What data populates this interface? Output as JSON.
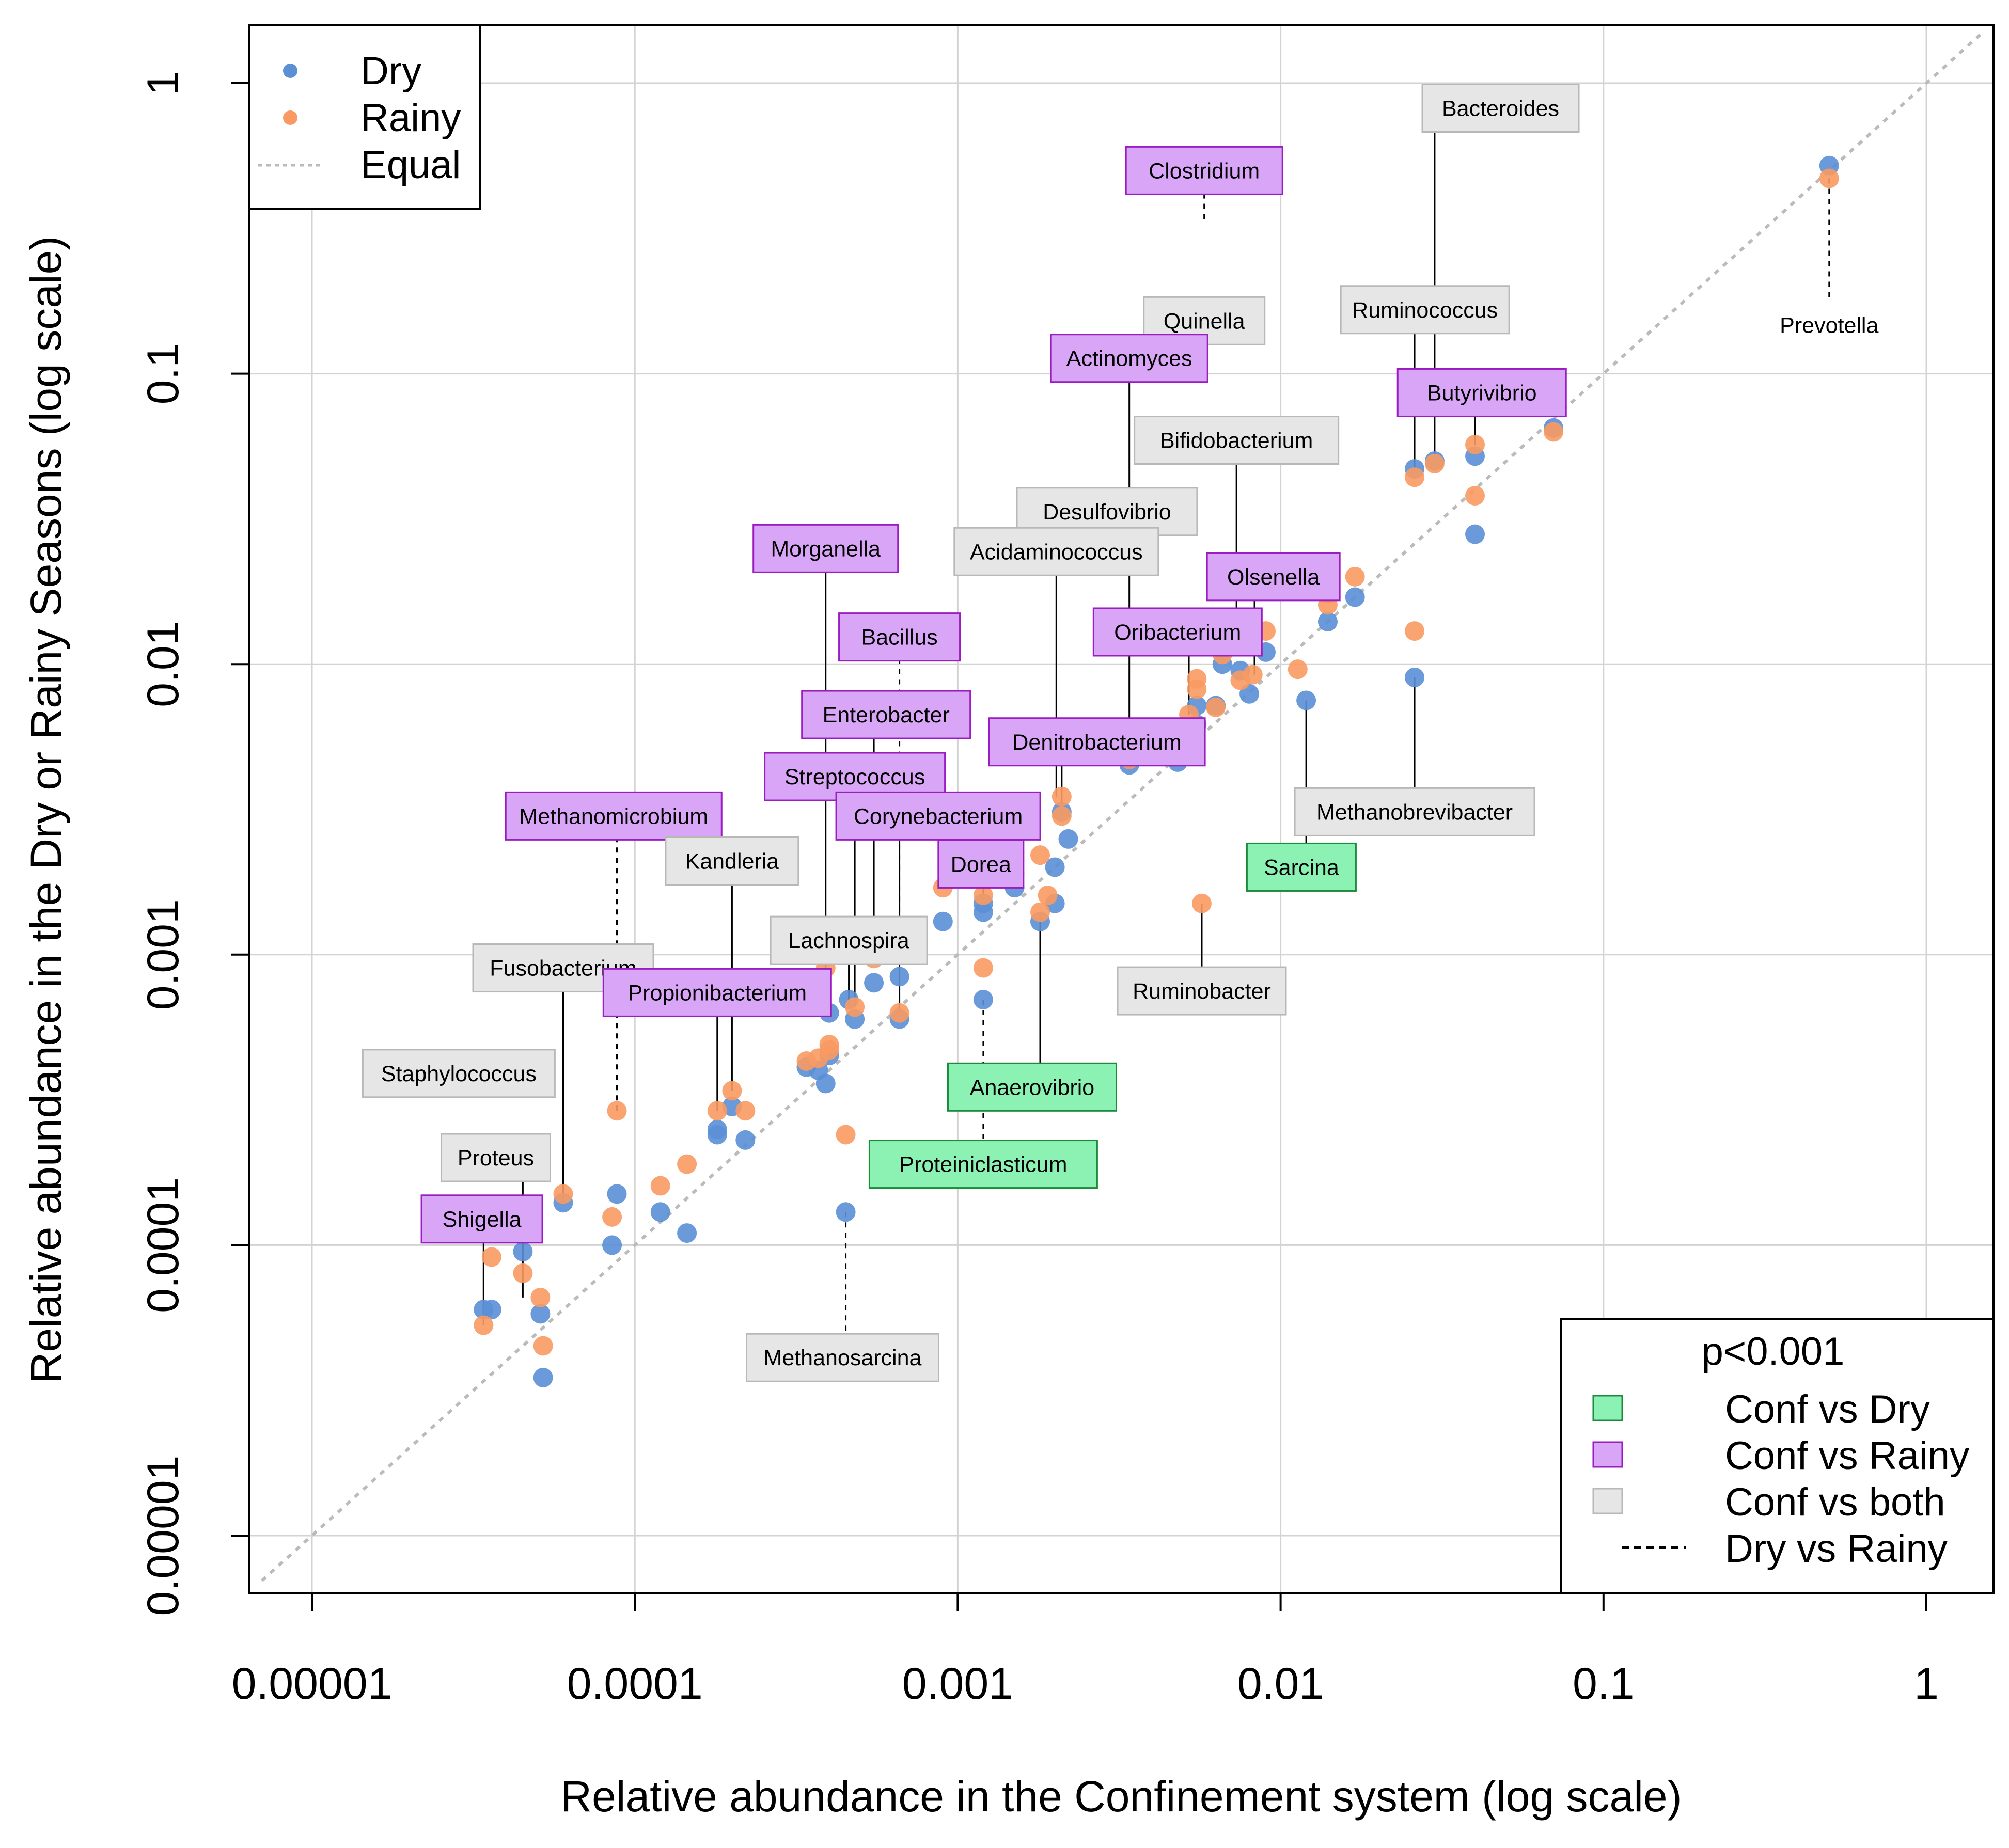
{
  "chart_data": {
    "type": "scatter",
    "xlabel": "Relative abundance in the Confinement system (log scale)",
    "ylabel": "Relative abundance in the Dry or Rainy Seasons (log scale)",
    "scale": "log10",
    "xlim": [
      7e-06,
      1.5
    ],
    "ylim": [
      6e-06,
      1.5
    ],
    "x_ticks": [
      {
        "value": 1e-05,
        "label": "0.00001"
      },
      {
        "value": 0.0001,
        "label": "0.0001"
      },
      {
        "value": 0.001,
        "label": "0.001"
      },
      {
        "value": 0.01,
        "label": "0.01"
      },
      {
        "value": 0.1,
        "label": "0.1"
      },
      {
        "value": 1,
        "label": "1"
      }
    ],
    "y_ticks": [
      {
        "value": 1e-05,
        "label": "0.00001"
      },
      {
        "value": 0.0001,
        "label": "0.0001"
      },
      {
        "value": 0.001,
        "label": "0.001"
      },
      {
        "value": 0.01,
        "label": "0.01"
      },
      {
        "value": 0.1,
        "label": "0.1"
      },
      {
        "value": 1,
        "label": "1"
      }
    ],
    "grid": true,
    "colors": {
      "dry": "#5B8FD6",
      "rainy": "#FA9A62",
      "equal_line": "#BBBBBB",
      "conf_vs_dry": "#8CF2B4",
      "conf_vs_rainy": "#D9A6F7",
      "conf_vs_both": "#E6E6E6",
      "conf_vs_dry_border": "#1E8A3C",
      "conf_vs_rainy_border": "#9B1CC0",
      "conf_vs_both_border": "#B8B8B8"
    },
    "legend_series": {
      "position": "top-left",
      "items": [
        {
          "key": "dry",
          "label": "Dry"
        },
        {
          "key": "rainy",
          "label": "Rainy"
        },
        {
          "key": "equal",
          "label": "Equal"
        }
      ]
    },
    "legend_significance": {
      "position": "bottom-right",
      "title": "p<0.001",
      "items": [
        {
          "key": "conf_vs_dry",
          "label": "Conf vs Dry"
        },
        {
          "key": "conf_vs_rainy",
          "label": "Conf vs Rainy"
        },
        {
          "key": "conf_vs_both",
          "label": "Conf vs both"
        },
        {
          "key": "dry_vs_rainy",
          "label": "Dry vs Rainy"
        }
      ]
    },
    "series": [
      {
        "name": "Dry",
        "points": [
          [
            0.5,
            0.52
          ],
          [
            0.07,
            0.065
          ],
          [
            0.04,
            0.052
          ],
          [
            0.03,
            0.05
          ],
          [
            0.026,
            0.047
          ],
          [
            0.04,
            0.028
          ],
          [
            0.026,
            0.009
          ],
          [
            0.017,
            0.017
          ],
          [
            0.014,
            0.014
          ],
          [
            0.012,
            0.0075
          ],
          [
            0.009,
            0.011
          ],
          [
            0.008,
            0.0079
          ],
          [
            0.0075,
            0.0095
          ],
          [
            0.0066,
            0.01
          ],
          [
            0.0063,
            0.0072
          ],
          [
            0.0055,
            0.0072
          ],
          [
            0.0055,
            0.0062
          ],
          [
            0.0052,
            0.0059
          ],
          [
            0.0048,
            0.0046
          ],
          [
            0.0034,
            0.0045
          ],
          [
            0.0025,
            0.0058
          ],
          [
            0.0022,
            0.0025
          ],
          [
            0.0021,
            0.0031
          ],
          [
            0.002,
            0.002
          ],
          [
            0.002,
            0.0015
          ],
          [
            0.0018,
            0.0013
          ],
          [
            0.0015,
            0.0017
          ],
          [
            0.0012,
            0.0014
          ],
          [
            0.0012,
            0.0015
          ],
          [
            0.0012,
            0.0007
          ],
          [
            0.0009,
            0.0013
          ],
          [
            0.00066,
            0.0006
          ],
          [
            0.00066,
            0.00084
          ],
          [
            0.00055,
            0.0008
          ],
          [
            0.00048,
            0.0006
          ],
          [
            0.00046,
            0.0007
          ],
          [
            0.00045,
            0.00013
          ],
          [
            0.0004,
            0.00045
          ],
          [
            0.0004,
            0.00063
          ],
          [
            0.00039,
            0.00036
          ],
          [
            0.00037,
            0.0004
          ],
          [
            0.00034,
            0.00041
          ],
          [
            0.00022,
            0.00023
          ],
          [
            0.0002,
            0.0003
          ],
          [
            0.00018,
            0.00024
          ],
          [
            0.00018,
            0.00025
          ],
          [
            0.000145,
            0.00011
          ],
          [
            0.00012,
            0.00013
          ],
          [
            8.8e-05,
            0.00015
          ],
          [
            8.5e-05,
            0.0001
          ],
          [
            6e-05,
            0.00014
          ],
          [
            5.2e-05,
            3.5e-05
          ],
          [
            5.1e-05,
            5.8e-05
          ],
          [
            4.5e-05,
            9.5e-05
          ],
          [
            3.6e-05,
            6e-05
          ],
          [
            3.4e-05,
            6e-05
          ]
        ]
      },
      {
        "name": "Rainy",
        "points": [
          [
            0.5,
            0.47
          ],
          [
            0.07,
            0.063
          ],
          [
            0.04,
            0.057
          ],
          [
            0.04,
            0.038
          ],
          [
            0.03,
            0.049
          ],
          [
            0.026,
            0.044
          ],
          [
            0.026,
            0.013
          ],
          [
            0.017,
            0.02
          ],
          [
            0.014,
            0.016
          ],
          [
            0.014,
            0.0175
          ],
          [
            0.0113,
            0.0096
          ],
          [
            0.009,
            0.013
          ],
          [
            0.0082,
            0.0092
          ],
          [
            0.0075,
            0.0088
          ],
          [
            0.0066,
            0.0108
          ],
          [
            0.0063,
            0.0071
          ],
          [
            0.0057,
            0.0015
          ],
          [
            0.0055,
            0.0082
          ],
          [
            0.0055,
            0.0089
          ],
          [
            0.0052,
            0.0067
          ],
          [
            0.0049,
            0.0056
          ],
          [
            0.0034,
            0.0047
          ],
          [
            0.0025,
            0.006
          ],
          [
            0.0021,
            0.0035
          ],
          [
            0.0021,
            0.003
          ],
          [
            0.0019,
            0.0016
          ],
          [
            0.0018,
            0.0014
          ],
          [
            0.0018,
            0.0022
          ],
          [
            0.0015,
            0.0019
          ],
          [
            0.0012,
            0.0016
          ],
          [
            0.0012,
            0.0009
          ],
          [
            0.0009,
            0.0017
          ],
          [
            0.00066,
            0.0011
          ],
          [
            0.00066,
            0.00063
          ],
          [
            0.00055,
            0.00097
          ],
          [
            0.00048,
            0.00066
          ],
          [
            0.00045,
            0.00024
          ],
          [
            0.0004,
            0.00049
          ],
          [
            0.0004,
            0.00047
          ],
          [
            0.00039,
            0.0009
          ],
          [
            0.00037,
            0.00044
          ],
          [
            0.00034,
            0.00043
          ],
          [
            0.00022,
            0.00029
          ],
          [
            0.0002,
            0.00034
          ],
          [
            0.00018,
            0.00029
          ],
          [
            0.000145,
            0.00019
          ],
          [
            0.00012,
            0.00016
          ],
          [
            8.8e-05,
            0.00029
          ],
          [
            8.5e-05,
            0.000125
          ],
          [
            6e-05,
            0.00015
          ],
          [
            5.2e-05,
            4.5e-05
          ],
          [
            5.1e-05,
            6.6e-05
          ],
          [
            4.5e-05,
            8e-05
          ],
          [
            3.6e-05,
            9.1e-05
          ],
          [
            3.4e-05,
            5.3e-05
          ]
        ]
      }
    ],
    "annotations": [
      {
        "label": "Bacteroides",
        "category": "conf_vs_both",
        "box": [
          0.048,
          0.82
        ],
        "anchor": [
          0.03,
          0.053
        ],
        "dashed": false
      },
      {
        "label": "Clostridium",
        "category": "conf_vs_rainy",
        "box": [
          0.0058,
          0.5
        ],
        "anchor": [
          0.0058,
          0.34
        ],
        "dashed": true
      },
      {
        "label": "Quinella",
        "category": "conf_vs_both",
        "box": [
          0.0058,
          0.152
        ],
        "anchor": [
          0.0058,
          0.152
        ],
        "dashed": false
      },
      {
        "label": "Ruminococcus",
        "category": "conf_vs_both",
        "box": [
          0.028,
          0.166
        ],
        "anchor": [
          0.026,
          0.047
        ],
        "dashed": false
      },
      {
        "label": "Prevotella",
        "category": "none",
        "box": [
          0.5,
          0.147
        ],
        "anchor": [
          0.5,
          0.47
        ],
        "dashed": true
      },
      {
        "label": "Actinomyces",
        "category": "conf_vs_rainy",
        "box": [
          0.0034,
          0.113
        ],
        "anchor": [
          0.0034,
          0.0047
        ],
        "dashed": false
      },
      {
        "label": "Butyrivibrio",
        "category": "conf_vs_rainy",
        "box": [
          0.042,
          0.086
        ],
        "anchor": [
          0.04,
          0.057
        ],
        "dashed": false
      },
      {
        "label": "Bifidobacterium",
        "category": "conf_vs_both",
        "box": [
          0.0073,
          0.059
        ],
        "anchor": [
          0.0073,
          0.011
        ],
        "dashed": false
      },
      {
        "label": "Desulfovibrio",
        "category": "conf_vs_both",
        "box": [
          0.0029,
          0.0335
        ],
        "anchor": [
          0.0029,
          0.0335
        ],
        "dashed": false
      },
      {
        "label": "Acidaminococcus",
        "category": "conf_vs_both",
        "box": [
          0.00202,
          0.0244
        ],
        "anchor": [
          0.00202,
          0.0035
        ],
        "dashed": false
      },
      {
        "label": "Morganella",
        "category": "conf_vs_rainy",
        "box": [
          0.00039,
          0.025
        ],
        "anchor": [
          0.00039,
          0.0009
        ],
        "dashed": false
      },
      {
        "label": "Olsenella",
        "category": "conf_vs_rainy",
        "box": [
          0.0095,
          0.02
        ],
        "anchor": [
          0.0083,
          0.0092
        ],
        "dashed": false
      },
      {
        "label": "Bacillus",
        "category": "conf_vs_rainy",
        "box": [
          0.00066,
          0.0124
        ],
        "anchor": [
          0.00066,
          0.0011
        ],
        "dashed": true
      },
      {
        "label": "Oribacterium",
        "category": "conf_vs_rainy",
        "box": [
          0.0048,
          0.0129
        ],
        "anchor": [
          0.0052,
          0.0067
        ],
        "dashed": false
      },
      {
        "label": "Enterobacter",
        "category": "conf_vs_rainy",
        "box": [
          0.0006,
          0.0067
        ],
        "anchor": [
          0.00055,
          0.00097
        ],
        "dashed": false
      },
      {
        "label": "Denitrobacterium",
        "category": "conf_vs_rainy",
        "box": [
          0.0027,
          0.0054
        ],
        "anchor": [
          0.0021,
          0.003
        ],
        "dashed": false
      },
      {
        "label": "Streptococcus",
        "category": "conf_vs_rainy",
        "box": [
          0.00048,
          0.0041
        ],
        "anchor": [
          0.00048,
          0.00066
        ],
        "dashed": false
      },
      {
        "label": "Methanomicrobium",
        "category": "conf_vs_rainy",
        "box": [
          8.6e-05,
          0.003
        ],
        "anchor": [
          8.8e-05,
          0.00029
        ],
        "dashed": true
      },
      {
        "label": "Corynebacterium",
        "category": "conf_vs_rainy",
        "box": [
          0.00087,
          0.003
        ],
        "anchor": [
          0.00066,
          0.00063
        ],
        "dashed": false
      },
      {
        "label": "Methanobrevibacter",
        "category": "conf_vs_both",
        "box": [
          0.026,
          0.0031
        ],
        "anchor": [
          0.026,
          0.009
        ],
        "dashed": false
      },
      {
        "label": "Kandleria",
        "category": "conf_vs_both",
        "box": [
          0.0002,
          0.0021
        ],
        "anchor": [
          0.0002,
          0.00034
        ],
        "dashed": false
      },
      {
        "label": "Dorea",
        "category": "conf_vs_rainy",
        "box": [
          0.00118,
          0.00205
        ],
        "anchor": [
          0.0012,
          0.0016
        ],
        "dashed": false
      },
      {
        "label": "Sarcina",
        "category": "conf_vs_dry",
        "box": [
          0.0116,
          0.002
        ],
        "anchor": [
          0.012,
          0.0075
        ],
        "dashed": false
      },
      {
        "label": "Lachnospira",
        "category": "conf_vs_both",
        "box": [
          0.00046,
          0.00112
        ],
        "anchor": [
          0.00046,
          0.00066
        ],
        "dashed": false
      },
      {
        "label": "Ruminobacter",
        "category": "conf_vs_both",
        "box": [
          0.0057,
          0.00075
        ],
        "anchor": [
          0.0057,
          0.0015
        ],
        "dashed": false
      },
      {
        "label": "Fusobacterium",
        "category": "conf_vs_both",
        "box": [
          6e-05,
          0.0009
        ],
        "anchor": [
          6e-05,
          0.00014
        ],
        "dashed": false
      },
      {
        "label": "Propionibacterium",
        "category": "conf_vs_rainy",
        "box": [
          0.00018,
          0.00074
        ],
        "anchor": [
          0.00018,
          0.00029
        ],
        "dashed": false
      },
      {
        "label": "Anaerovibrio",
        "category": "conf_vs_dry",
        "box": [
          0.0017,
          0.00035
        ],
        "anchor": [
          0.0018,
          0.0014
        ],
        "dashed": false
      },
      {
        "label": "Staphylococcus",
        "category": "conf_vs_both",
        "box": [
          2.85e-05,
          0.00039
        ],
        "anchor": [
          2.85e-05,
          0.00039
        ],
        "dashed": false
      },
      {
        "label": "Proteiniclasticum",
        "category": "conf_vs_dry",
        "box": [
          0.0012,
          0.00019
        ],
        "anchor": [
          0.0012,
          0.0007
        ],
        "dashed": true
      },
      {
        "label": "Proteus",
        "category": "conf_vs_both",
        "box": [
          3.71e-05,
          0.0002
        ],
        "anchor": [
          4.5e-05,
          6.6e-05
        ],
        "dashed": false
      },
      {
        "label": "Shigella",
        "category": "conf_vs_rainy",
        "box": [
          3.36e-05,
          0.000123
        ],
        "anchor": [
          3.4e-05,
          5.3e-05
        ],
        "dashed": false
      },
      {
        "label": "Methanosarcina",
        "category": "conf_vs_both",
        "box": [
          0.00044,
          4.1e-05
        ],
        "anchor": [
          0.00045,
          0.00013
        ],
        "dashed": true
      }
    ]
  }
}
